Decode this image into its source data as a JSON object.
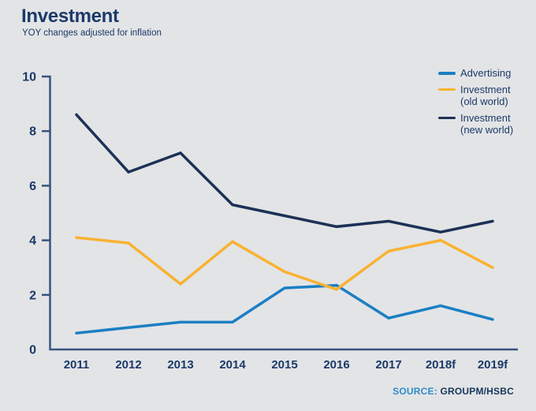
{
  "header": {
    "title": "Investment",
    "subtitle": "YOY changes adjusted for inflation"
  },
  "source": {
    "prefix": "SOURCE:",
    "value": "GROUPM/HSBC"
  },
  "colors": {
    "background": "#e3e4e6",
    "text_navy": "#1b3a69",
    "axis": "#38547f",
    "source_prefix_blue": "#2d8ccb",
    "source_value_navy": "#16365c"
  },
  "chart_data": {
    "type": "line",
    "title": "Investment",
    "subtitle": "YOY changes adjusted for inflation",
    "categories": [
      "2011",
      "2012",
      "2013",
      "2014",
      "2015",
      "2016",
      "2017",
      "2018f",
      "2019f"
    ],
    "series": [
      {
        "name": "Advertising",
        "legend_label": "Advertising",
        "color": "#1b7fc4",
        "values": [
          0.6,
          0.8,
          1.0,
          1.0,
          2.25,
          2.35,
          1.15,
          1.6,
          1.1
        ]
      },
      {
        "name": "Investment (old world)",
        "legend_label": "Investment\n(old world)",
        "color": "#f9b231",
        "values": [
          4.1,
          3.9,
          2.4,
          3.95,
          2.85,
          2.2,
          3.6,
          4.0,
          3.0
        ]
      },
      {
        "name": "Investment (new world)",
        "legend_label": "Investment\n(new world)",
        "color": "#1c3156",
        "values": [
          8.6,
          6.5,
          7.2,
          5.3,
          4.9,
          4.5,
          4.7,
          4.3,
          4.7
        ]
      }
    ],
    "xlabel": "",
    "ylabel": "",
    "ylim": [
      0,
      10
    ],
    "yticks": [
      0,
      2,
      4,
      6,
      8,
      10
    ],
    "grid": false,
    "legend_position": "top-right"
  }
}
